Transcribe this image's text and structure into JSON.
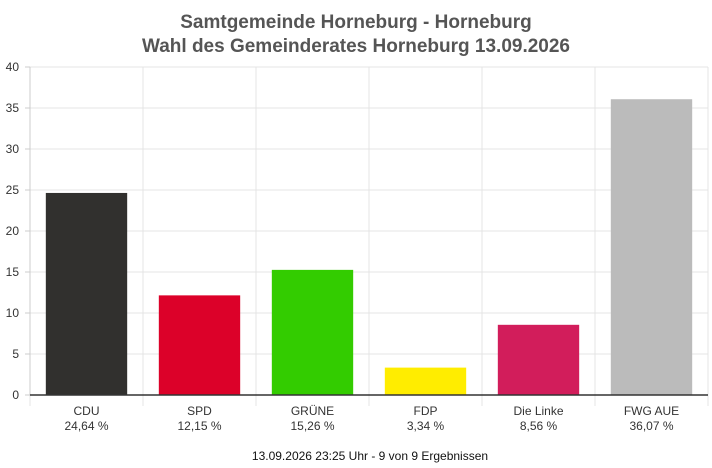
{
  "chart_data": {
    "type": "bar",
    "title": [
      "Samtgemeinde Horneburg - Horneburg",
      "Wahl des Gemeinderates Horneburg 13.09.2026"
    ],
    "categories": [
      "CDU",
      "SPD",
      "GRÜNE",
      "FDP",
      "Die Linke",
      "FWG AUE"
    ],
    "values": [
      24.64,
      12.15,
      15.26,
      3.34,
      8.56,
      36.07
    ],
    "value_labels": [
      "24,64 %",
      "12,15 %",
      "15,26 %",
      "3,34 %",
      "8,56 %",
      "36,07 %"
    ],
    "colors": [
      "#31302e",
      "#dc0129",
      "#33cc00",
      "#ffed00",
      "#d21d5b",
      "#bbbbbb"
    ],
    "ylim": [
      0,
      40
    ],
    "yticks": [
      "0",
      "5",
      "10",
      "15",
      "20",
      "25",
      "30",
      "35",
      "40"
    ],
    "xlabel": "",
    "ylabel": "",
    "grid": true,
    "legend": "none"
  },
  "footer": "13.09.2026 23:25 Uhr - 9 von 9 Ergebnissen"
}
